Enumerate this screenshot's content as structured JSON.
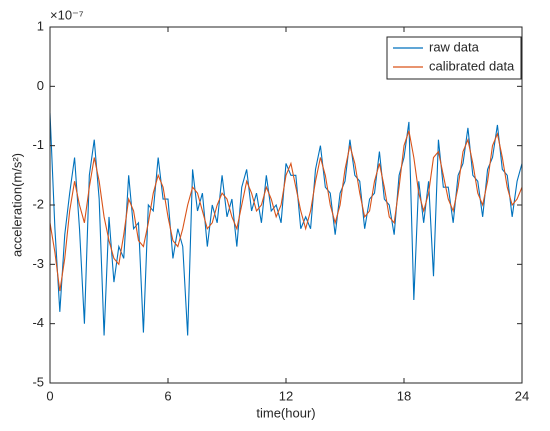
{
  "chart_data": {
    "type": "line",
    "xlabel": "time(hour)",
    "ylabel": "acceleration(m/s²)",
    "y_exponent": "×10⁻⁷",
    "x": [
      0,
      0.25,
      0.5,
      0.75,
      1,
      1.25,
      1.5,
      1.75,
      2,
      2.25,
      2.5,
      2.75,
      3,
      3.25,
      3.5,
      3.75,
      4,
      4.25,
      4.5,
      4.75,
      5,
      5.25,
      5.5,
      5.75,
      6,
      6.25,
      6.5,
      6.75,
      7,
      7.25,
      7.5,
      7.75,
      8,
      8.25,
      8.5,
      8.75,
      9,
      9.25,
      9.5,
      9.75,
      10,
      10.25,
      10.5,
      10.75,
      11,
      11.25,
      11.5,
      11.75,
      12,
      12.25,
      12.5,
      12.75,
      13,
      13.25,
      13.5,
      13.75,
      14,
      14.25,
      14.5,
      14.75,
      15,
      15.25,
      15.5,
      15.75,
      16,
      16.25,
      16.5,
      16.75,
      17,
      17.25,
      17.5,
      17.75,
      18,
      18.25,
      18.5,
      18.75,
      19,
      19.25,
      19.5,
      19.75,
      20,
      20.25,
      20.5,
      20.75,
      21,
      21.25,
      21.5,
      21.75,
      22,
      22.25,
      22.5,
      22.75,
      23,
      23.25,
      23.5,
      23.75,
      24
    ],
    "series": [
      {
        "name": "raw data",
        "color": "#0072bd",
        "values": [
          -0.45,
          -2.4,
          -3.8,
          -2.5,
          -1.8,
          -1.2,
          -2.4,
          -4.0,
          -1.5,
          -0.9,
          -1.9,
          -4.2,
          -2.2,
          -3.3,
          -2.7,
          -2.9,
          -1.5,
          -2.4,
          -2.3,
          -4.15,
          -2.0,
          -2.1,
          -1.2,
          -1.9,
          -1.9,
          -2.9,
          -2.4,
          -2.7,
          -4.2,
          -1.4,
          -2.1,
          -1.8,
          -2.7,
          -2.0,
          -2.3,
          -1.5,
          -2.2,
          -1.9,
          -2.7,
          -1.7,
          -1.4,
          -2.1,
          -1.8,
          -2.3,
          -1.5,
          -2.1,
          -2.0,
          -2.3,
          -1.3,
          -1.5,
          -1.5,
          -2.4,
          -2.2,
          -2.4,
          -1.4,
          -1.0,
          -1.7,
          -1.8,
          -2.5,
          -1.8,
          -1.6,
          -0.9,
          -1.5,
          -1.6,
          -2.4,
          -1.9,
          -1.8,
          -1.1,
          -1.9,
          -2.0,
          -2.5,
          -1.5,
          -1.2,
          -0.6,
          -3.6,
          -1.6,
          -2.3,
          -1.6,
          -3.2,
          -0.9,
          -1.7,
          -1.7,
          -2.3,
          -1.5,
          -1.3,
          -0.7,
          -1.5,
          -1.6,
          -2.2,
          -1.4,
          -1.2,
          -0.65,
          -1.4,
          -1.5,
          -2.2,
          -1.6,
          -1.3
        ]
      },
      {
        "name": "calibrated data",
        "color": "#d95319",
        "values": [
          -2.3,
          -2.8,
          -3.45,
          -2.9,
          -2.1,
          -1.6,
          -2.0,
          -2.3,
          -1.7,
          -1.2,
          -1.6,
          -2.2,
          -2.6,
          -2.9,
          -3.0,
          -2.5,
          -1.9,
          -2.1,
          -2.6,
          -2.7,
          -2.3,
          -1.8,
          -1.5,
          -1.7,
          -2.2,
          -2.6,
          -2.7,
          -2.4,
          -2.0,
          -1.7,
          -1.8,
          -2.1,
          -2.4,
          -2.3,
          -2.0,
          -1.8,
          -1.9,
          -2.2,
          -2.4,
          -2.0,
          -1.6,
          -1.8,
          -2.1,
          -2.0,
          -1.7,
          -1.9,
          -2.2,
          -2.0,
          -1.5,
          -1.3,
          -1.7,
          -2.1,
          -2.4,
          -2.1,
          -1.6,
          -1.2,
          -1.5,
          -2.0,
          -2.3,
          -2.0,
          -1.4,
          -1.0,
          -1.3,
          -1.8,
          -2.2,
          -2.1,
          -1.6,
          -1.3,
          -1.7,
          -2.2,
          -2.3,
          -1.7,
          -1.0,
          -0.75,
          -1.2,
          -1.8,
          -2.1,
          -1.8,
          -1.2,
          -1.1,
          -1.5,
          -1.9,
          -2.1,
          -1.7,
          -1.1,
          -0.9,
          -1.3,
          -1.8,
          -2.0,
          -1.6,
          -1.0,
          -0.8,
          -1.2,
          -1.7,
          -2.0,
          -1.9,
          -1.7
        ]
      }
    ],
    "xlim": [
      0,
      24
    ],
    "xticks": [
      0,
      6,
      12,
      18,
      24
    ],
    "ylim": [
      -5,
      1
    ],
    "yticks": [
      -5,
      -4,
      -3,
      -2,
      -1,
      0,
      1
    ],
    "grid": false,
    "legend": "top-right"
  }
}
